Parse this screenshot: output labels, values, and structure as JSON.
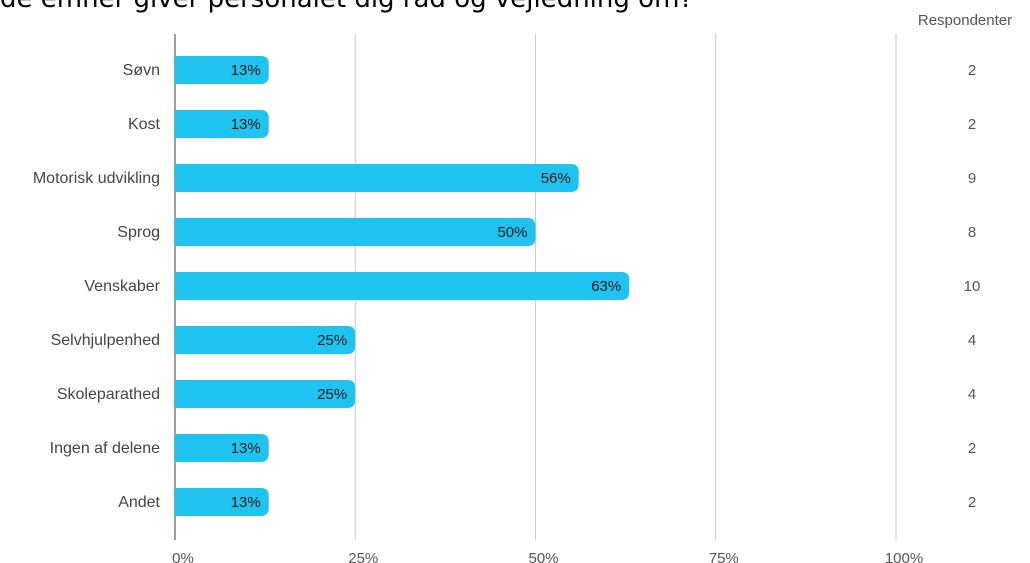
{
  "title": "de emner giver personalet dig råd og vejledning om?",
  "respondents_header": "Respondenter",
  "chart_data": {
    "type": "bar",
    "orientation": "horizontal",
    "categories": [
      "Søvn",
      "Kost",
      "Motorisk udvikling",
      "Sprog",
      "Venskaber",
      "Selvhjulpenhed",
      "Skoleparathed",
      "Ingen af delene",
      "Andet"
    ],
    "values": [
      13,
      13,
      56,
      50,
      63,
      25,
      25,
      13,
      13
    ],
    "value_labels": [
      "13%",
      "13%",
      "56%",
      "50%",
      "63%",
      "25%",
      "25%",
      "13%",
      "13%"
    ],
    "respondents": [
      2,
      2,
      9,
      8,
      10,
      4,
      4,
      2,
      2
    ],
    "xlim": [
      0,
      100
    ],
    "x_ticks": [
      "0%",
      "25%",
      "50%",
      "75%",
      "100%"
    ],
    "grid": true,
    "bar_color": "#1EC3F0"
  }
}
